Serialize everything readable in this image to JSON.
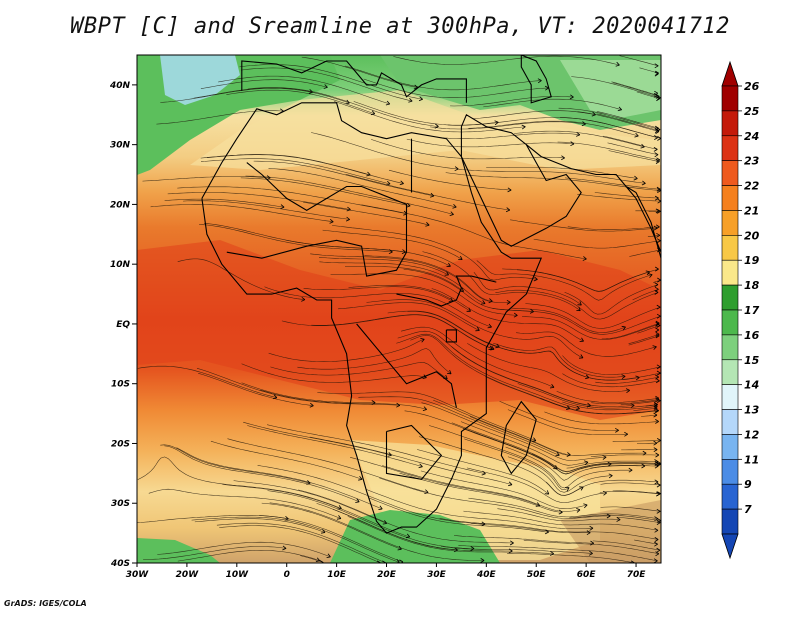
{
  "title": "WBPT [C] and Sreamline at 300hPa, VT: 2020041712",
  "credit": "GrADS: IGES/COLA",
  "map": {
    "lat_labels": [
      "40N",
      "30N",
      "20N",
      "10N",
      "EQ",
      "10S",
      "20S",
      "30S",
      "40S"
    ],
    "lon_labels": [
      "30W",
      "20W",
      "10W",
      "0",
      "10E",
      "20E",
      "30E",
      "40E",
      "50E",
      "60E",
      "70E"
    ],
    "lat_range": [
      -40,
      45
    ],
    "lon_range": [
      -30,
      75
    ]
  },
  "colorbar": {
    "labels": [
      "26",
      "25",
      "24",
      "23",
      "22",
      "21",
      "20",
      "19",
      "18",
      "17",
      "16",
      "15",
      "14",
      "13",
      "12",
      "11",
      "9",
      "7"
    ],
    "colors": [
      "#a00000",
      "#c41a0a",
      "#dc3214",
      "#ef5a1e",
      "#f5801e",
      "#f7a028",
      "#f8c846",
      "#fae88a",
      "#2e9e2e",
      "#4cb84c",
      "#7dd07d",
      "#b4e6b4",
      "#e1f5fa",
      "#b4d7fa",
      "#78b4f0",
      "#4b8ce6",
      "#2864d2",
      "#1446b4"
    ]
  }
}
